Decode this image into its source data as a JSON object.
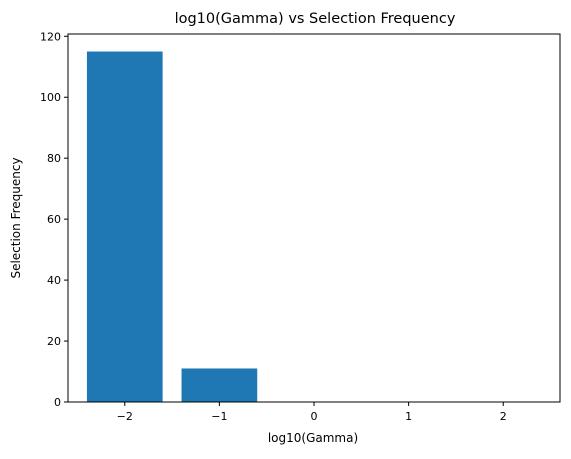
{
  "chart_data": {
    "type": "bar",
    "title": "log10(Gamma) vs Selection Frequency",
    "xlabel": "log10(Gamma)",
    "ylabel": "Selection Frequency",
    "x": [
      -2,
      -1,
      0,
      1,
      2
    ],
    "values": [
      115,
      11,
      0,
      0,
      0
    ],
    "bar_width": 0.8,
    "xlim": [
      -2.6,
      2.6
    ],
    "ylim": [
      0,
      120.75
    ],
    "xticks": [
      -2,
      -1,
      0,
      1,
      2
    ],
    "xtick_labels": [
      "−2",
      "−1",
      "0",
      "1",
      "2"
    ],
    "yticks": [
      0,
      20,
      40,
      60,
      80,
      100,
      120
    ],
    "ytick_labels": [
      "0",
      "20",
      "40",
      "60",
      "80",
      "100",
      "120"
    ],
    "bar_color": "#1f77b4",
    "grid": false,
    "legend": "none"
  }
}
